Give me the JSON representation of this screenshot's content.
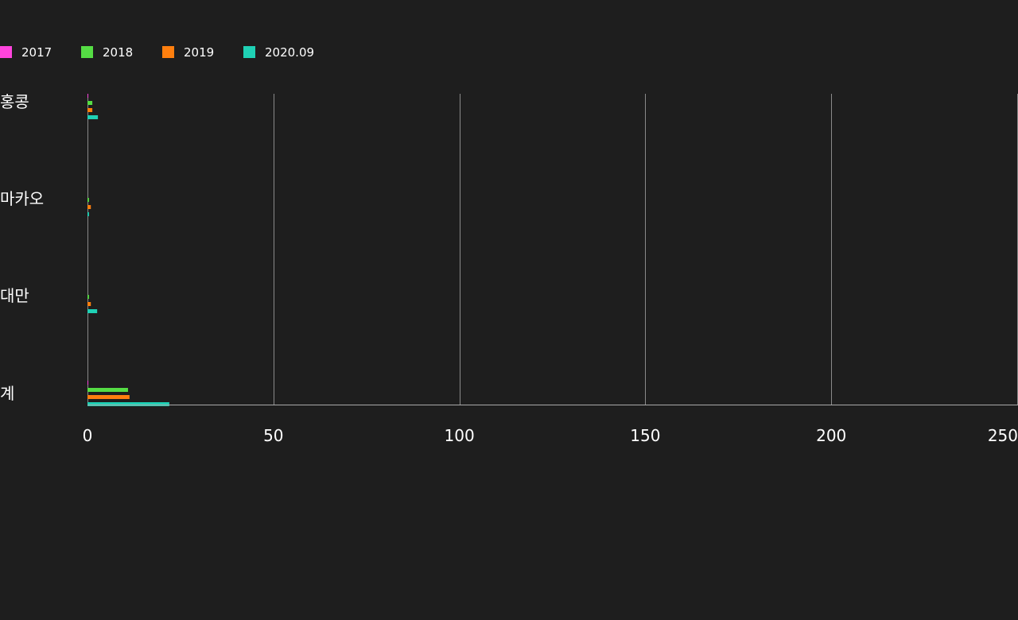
{
  "chart_data": {
    "type": "bar",
    "orientation": "horizontal",
    "categories": [
      "홍콩",
      "마카오",
      "대만",
      "계"
    ],
    "series": [
      {
        "name": "2017",
        "color": "#ff44dd",
        "values": [
          0.2,
          0,
          0,
          0.2
        ]
      },
      {
        "name": "2018",
        "color": "#55dd44",
        "values": [
          1.3,
          0.4,
          0.4,
          10.9
        ]
      },
      {
        "name": "2019",
        "color": "#ff7f0e",
        "values": [
          1.3,
          0.9,
          0.9,
          11.3
        ]
      },
      {
        "name": "2020.09",
        "color": "#1fd1b5",
        "values": [
          2.8,
          0.4,
          2.6,
          22.0
        ]
      }
    ],
    "xlim": [
      0,
      250
    ],
    "xticks": [
      "0",
      "50",
      "100",
      "150",
      "200",
      "250"
    ],
    "grid": true,
    "legend": "top-left"
  }
}
